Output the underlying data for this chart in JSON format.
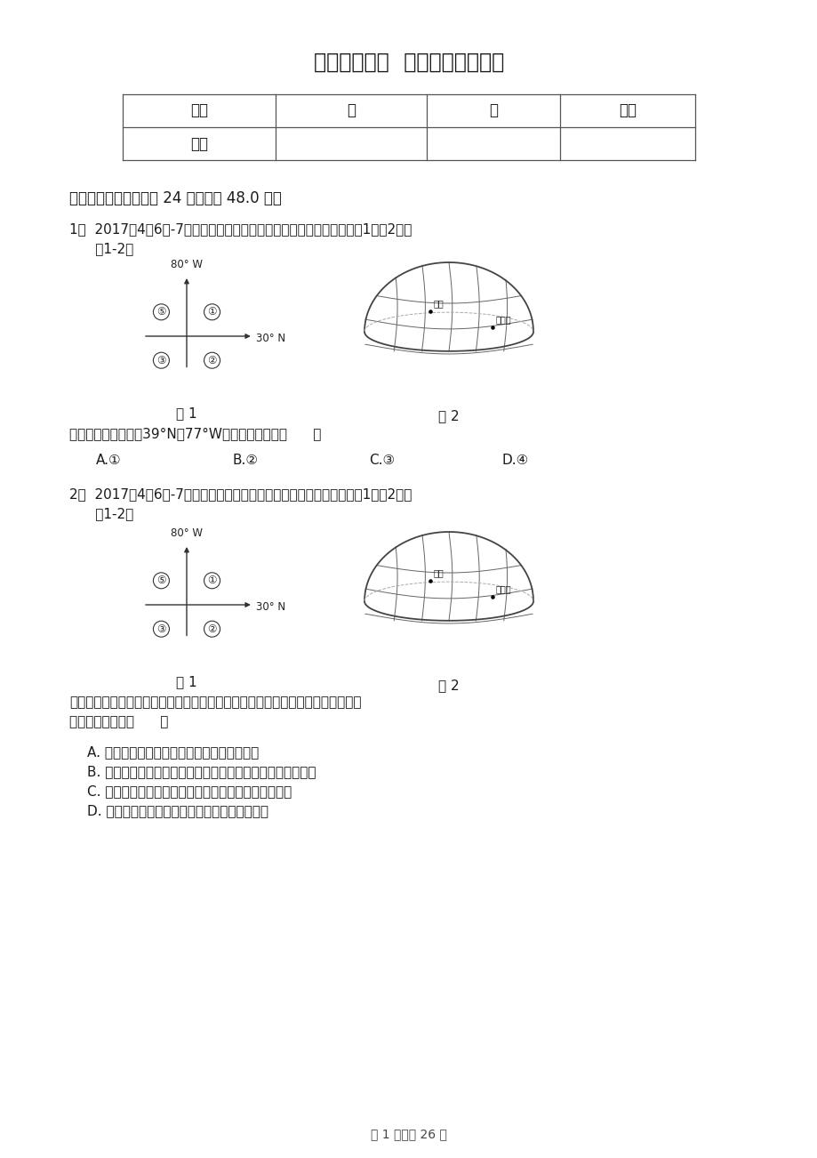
{
  "title": "山东省临沂市  中考地理一模试卷",
  "table_headers": [
    "题号",
    "一",
    "二",
    "总分"
  ],
  "table_row2": [
    "得分",
    "",
    "",
    ""
  ],
  "section1_header": "一、单选题（本大题共 24 小题，共 48.0 分）",
  "q1_line1": "1．  2017年4月6日-7日，国家主席习近平对美国进行国事访问，组合图1，图2，回",
  "q1_line2": "      答1-2题",
  "q1_fig1_label": "图 1",
  "q1_fig2_label": "图 2",
  "q1_question": "美国首都华盛顿（约39°N，77°W），位于图中的（      ）",
  "q1_options": [
    "A.①",
    "B.②",
    "C.③",
    "D.④"
  ],
  "q2_line1": "2．  2017年4月6日-7日，国家主席习近平对美国进行国事访问，组合图1，图2，回",
  "q2_line2": "      答1-2题",
  "q2_fig1_label": "图 1",
  "q2_fig2_label": "图 2",
  "q2_question_line1": "习近平强调「宽广的太平洋足以能容下中美两个大国」，下列关于中国和美国的说",
  "q2_question_line2": "法，不正确的是（      ）",
  "q2_options": [
    "A. 中国位于太平洋西岸，美国位于太平洋东岸",
    "B. 中国和美国之间的政治、经济合作商谈可称为「南北对话」",
    "C. 中国和美国两国领土都位于热带和北温带，没有寒带",
    "D. 由于地球的自转，中国和美国会出现时间差异"
  ],
  "footer": "第 1 页，共 26 页",
  "fig1_label_top": "80° W",
  "fig1_label_right": "30° N",
  "fig1_quadrants": [
    "⑤",
    "①",
    "③",
    "②"
  ],
  "fig2_city1": "北京",
  "fig2_city2": "华盛顿",
  "bg_color": "#ffffff",
  "border_color": "#555555",
  "text_color": "#1a1a1a"
}
